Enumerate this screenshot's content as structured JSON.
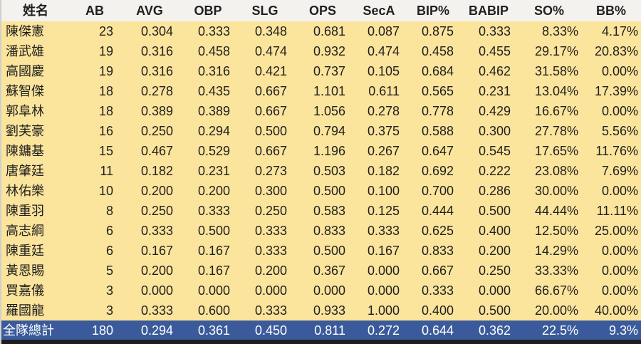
{
  "chart_data": {
    "type": "table",
    "columns": [
      "姓名",
      "AB",
      "AVG",
      "OBP",
      "SLG",
      "OPS",
      "SecA",
      "BIP%",
      "BABIP",
      "SO%",
      "BB%"
    ],
    "rows": [
      [
        "陳傑憲",
        "23",
        "0.304",
        "0.333",
        "0.348",
        "0.681",
        "0.087",
        "0.875",
        "0.333",
        "8.33%",
        "4.17%"
      ],
      [
        "潘武雄",
        "19",
        "0.316",
        "0.458",
        "0.474",
        "0.932",
        "0.474",
        "0.458",
        "0.455",
        "29.17%",
        "20.83%"
      ],
      [
        "高國慶",
        "19",
        "0.316",
        "0.316",
        "0.421",
        "0.737",
        "0.105",
        "0.684",
        "0.462",
        "31.58%",
        "0.00%"
      ],
      [
        "蘇智傑",
        "18",
        "0.278",
        "0.435",
        "0.667",
        "1.101",
        "0.611",
        "0.565",
        "0.231",
        "13.04%",
        "17.39%"
      ],
      [
        "郭阜林",
        "18",
        "0.389",
        "0.389",
        "0.667",
        "1.056",
        "0.278",
        "0.778",
        "0.429",
        "16.67%",
        "0.00%"
      ],
      [
        "劉芙豪",
        "16",
        "0.250",
        "0.294",
        "0.500",
        "0.794",
        "0.375",
        "0.588",
        "0.300",
        "27.78%",
        "5.56%"
      ],
      [
        "陳鏞基",
        "15",
        "0.467",
        "0.529",
        "0.667",
        "1.196",
        "0.267",
        "0.647",
        "0.545",
        "17.65%",
        "11.76%"
      ],
      [
        "唐肇廷",
        "11",
        "0.182",
        "0.231",
        "0.273",
        "0.503",
        "0.182",
        "0.692",
        "0.222",
        "23.08%",
        "7.69%"
      ],
      [
        "林佑樂",
        "10",
        "0.200",
        "0.200",
        "0.300",
        "0.500",
        "0.100",
        "0.700",
        "0.286",
        "30.00%",
        "0.00%"
      ],
      [
        "陳重羽",
        "8",
        "0.250",
        "0.333",
        "0.250",
        "0.583",
        "0.125",
        "0.444",
        "0.500",
        "44.44%",
        "11.11%"
      ],
      [
        "高志綱",
        "6",
        "0.333",
        "0.500",
        "0.333",
        "0.833",
        "0.333",
        "0.625",
        "0.400",
        "12.50%",
        "25.00%"
      ],
      [
        "陳重廷",
        "6",
        "0.167",
        "0.167",
        "0.333",
        "0.500",
        "0.167",
        "0.833",
        "0.200",
        "14.29%",
        "0.00%"
      ],
      [
        "黃恩賜",
        "5",
        "0.200",
        "0.167",
        "0.200",
        "0.367",
        "0.000",
        "0.667",
        "0.250",
        "33.33%",
        "0.00%"
      ],
      [
        "買嘉儀",
        "3",
        "0.000",
        "0.000",
        "0.000",
        "0.000",
        "0.000",
        "0.333",
        "0.000",
        "66.67%",
        "0.00%"
      ],
      [
        "羅國龍",
        "3",
        "0.333",
        "0.600",
        "0.333",
        "0.933",
        "1.000",
        "0.400",
        "0.500",
        "20.00%",
        "40.00%"
      ]
    ],
    "total_row": [
      "全隊總計",
      "180",
      "0.294",
      "0.361",
      "0.450",
      "0.811",
      "0.272",
      "0.644",
      "0.362",
      "22.5%",
      "9.3%"
    ]
  },
  "colors": {
    "header_bg": "#F3F2EF",
    "row_bg": "#FBE49B",
    "total_bg": "#3A5A9B",
    "total_text": "#FFFFFF",
    "text": "#1F1F1F",
    "bottom_bar": "#1E1E1E",
    "left_border": "#CFCFCF"
  }
}
